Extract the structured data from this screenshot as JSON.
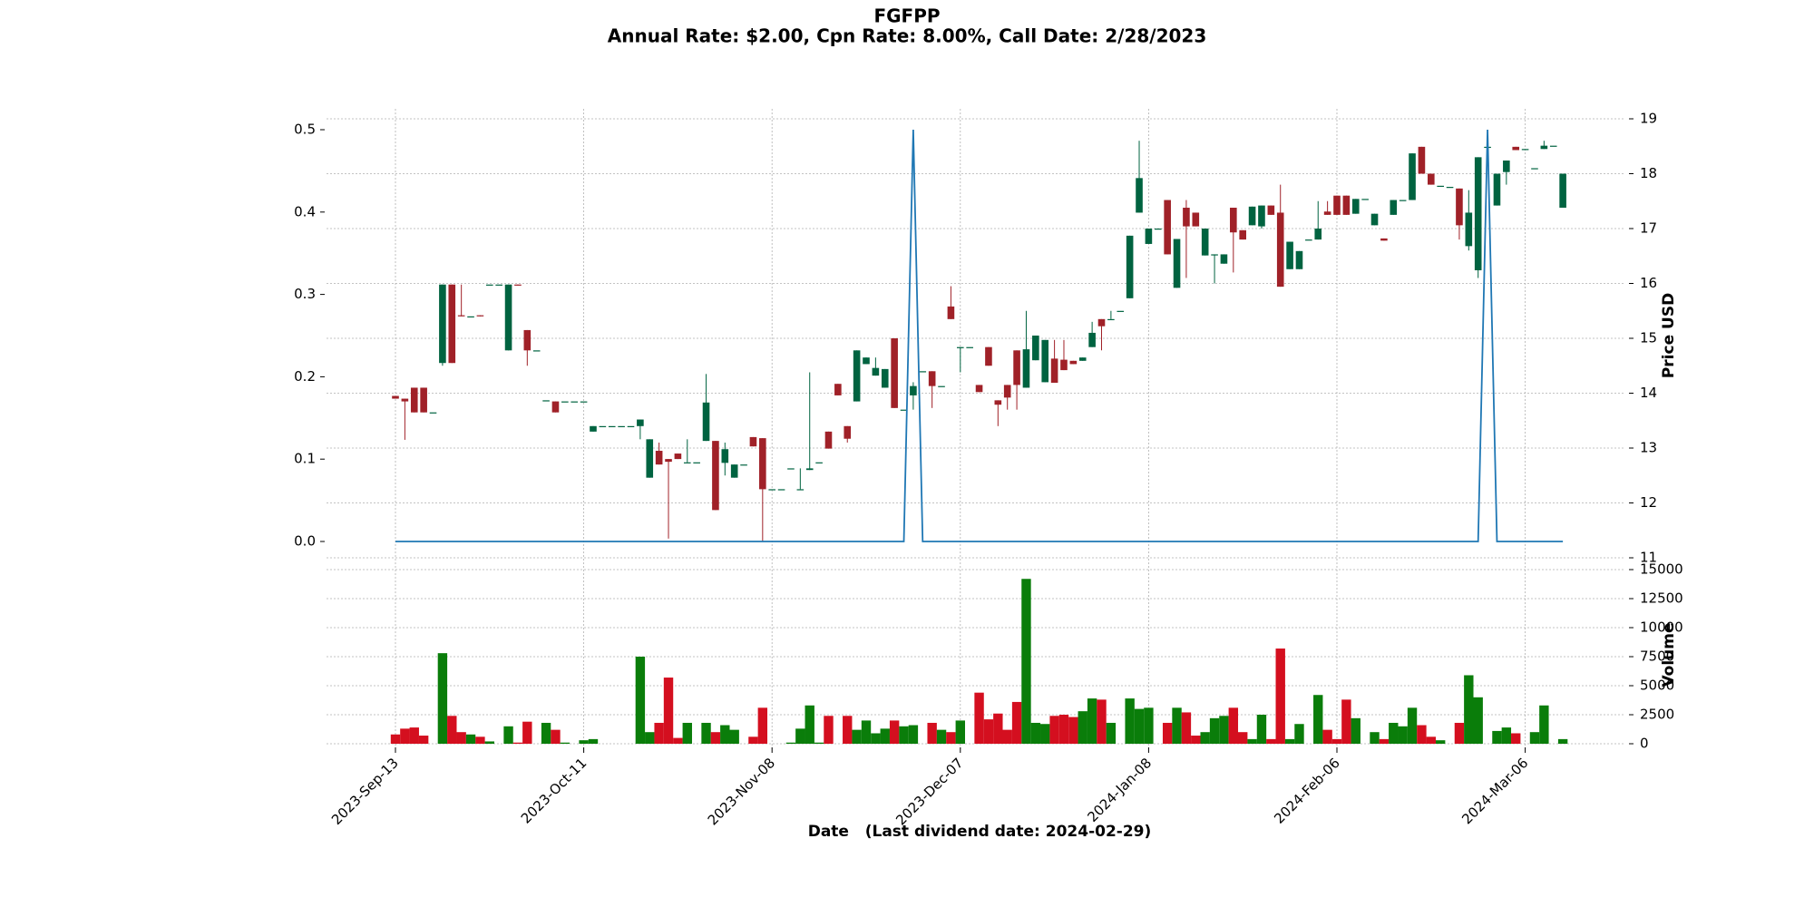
{
  "chart_data": {
    "type": "candlestick",
    "title": "FGFPP",
    "subtitle": "Annual Rate: $2.00, Cpn Rate: 8.00%, Call Date: 2/28/2023",
    "xlabel": "Date   (Last dividend date: 2024-02-29)",
    "ylabel": "Price USD",
    "volume_label": "Volume",
    "categories": [
      "2023-Sep-13",
      null,
      null,
      null,
      null,
      null,
      null,
      null,
      null,
      null,
      null,
      null,
      null,
      null,
      null,
      null,
      null,
      null,
      null,
      null,
      "2023-Oct-11",
      null,
      null,
      null,
      null,
      null,
      null,
      null,
      null,
      null,
      null,
      null,
      null,
      null,
      null,
      null,
      null,
      null,
      null,
      null,
      "2023-Nov-08",
      null,
      null,
      null,
      null,
      null,
      null,
      null,
      null,
      null,
      null,
      null,
      null,
      null,
      null,
      null,
      null,
      null,
      null,
      null,
      "2023-Dec-07",
      null,
      null,
      null,
      null,
      null,
      null,
      null,
      null,
      null,
      null,
      null,
      null,
      null,
      null,
      null,
      null,
      null,
      null,
      null,
      "2024-Jan-08",
      null,
      null,
      null,
      null,
      null,
      null,
      null,
      null,
      null,
      null,
      null,
      null,
      null,
      null,
      null,
      null,
      null,
      null,
      null,
      "2024-Feb-06",
      null,
      null,
      null,
      null,
      null,
      null,
      null,
      null,
      null,
      null,
      null,
      null,
      null,
      null,
      null,
      null,
      null,
      null,
      null,
      "2024-Mar-06",
      null,
      null,
      null,
      null
    ],
    "open": [
      13.95,
      13.9,
      14.1,
      14.1,
      13.65,
      14.55,
      15.98,
      15.42,
      15.4,
      15.42,
      15.98,
      15.98,
      14.78,
      15.98,
      15.15,
      14.78,
      13.87,
      13.85,
      13.85,
      13.85,
      13.85,
      13.3,
      13.4,
      13.4,
      13.4,
      13.4,
      13.4,
      12.46,
      12.95,
      12.8,
      12.9,
      12.74,
      12.74,
      13.13,
      13.13,
      12.73,
      12.46,
      12.7,
      13.2,
      13.18,
      12.25,
      12.25,
      12.63,
      12.25,
      12.6,
      12.74,
      13.3,
      14.17,
      13.4,
      13.85,
      14.53,
      14.32,
      14.1,
      15.0,
      13.7,
      13.96,
      14.4,
      14.4,
      14.13,
      15.58,
      14.82,
      14.84,
      14.15,
      14.84,
      13.87,
      14.15,
      14.78,
      14.1,
      14.6,
      14.2,
      14.63,
      14.61,
      14.59,
      14.59,
      14.84,
      15.35,
      15.35,
      15.5,
      15.73,
      17.29,
      16.72,
      17.0,
      17.52,
      15.92,
      17.38,
      17.29,
      16.51,
      16.53,
      16.36,
      17.38,
      16.97,
      17.06,
      17.04,
      17.42,
      17.29,
      16.26,
      16.26,
      16.8,
      16.8,
      17.31,
      17.6,
      17.6,
      17.27,
      17.54,
      17.06,
      16.82,
      17.25,
      17.52,
      17.52,
      18.49,
      18.0,
      17.78,
      17.76,
      17.73,
      16.68,
      16.24,
      18.49,
      17.42,
      18.03,
      18.49,
      18.45,
      18.1,
      18.45,
      18.51,
      17.38
    ],
    "high": [
      13.95,
      13.9,
      14.1,
      14.1,
      13.65,
      15.98,
      15.98,
      15.98,
      15.4,
      15.42,
      15.98,
      15.98,
      15.98,
      15.98,
      15.15,
      14.78,
      13.87,
      13.85,
      13.85,
      13.85,
      13.85,
      13.4,
      13.4,
      13.4,
      13.4,
      13.4,
      13.52,
      13.16,
      13.1,
      12.8,
      12.9,
      13.16,
      12.74,
      14.35,
      13.13,
      13.1,
      12.7,
      12.7,
      13.2,
      13.18,
      12.25,
      12.25,
      12.63,
      12.63,
      14.38,
      12.74,
      13.3,
      14.17,
      13.4,
      14.78,
      14.65,
      14.65,
      14.44,
      15.0,
      13.7,
      14.2,
      14.4,
      14.4,
      14.13,
      15.95,
      14.84,
      14.84,
      14.15,
      14.84,
      13.87,
      14.15,
      14.78,
      15.5,
      15.05,
      14.97,
      14.97,
      14.97,
      14.59,
      14.65,
      15.3,
      15.35,
      15.5,
      15.5,
      16.87,
      18.6,
      17.0,
      17.0,
      17.52,
      16.81,
      17.52,
      17.29,
      17.0,
      16.53,
      16.53,
      17.38,
      16.97,
      17.4,
      17.42,
      17.42,
      17.8,
      16.76,
      16.59,
      16.8,
      17.5,
      17.5,
      17.6,
      17.6,
      17.54,
      17.54,
      17.27,
      16.82,
      17.52,
      17.52,
      18.37,
      18.49,
      18.0,
      17.78,
      17.76,
      17.73,
      17.7,
      18.3,
      18.49,
      18.0,
      18.24,
      18.49,
      18.45,
      18.1,
      18.6,
      18.51,
      18.0
    ],
    "low": [
      13.9,
      13.15,
      13.65,
      13.65,
      13.65,
      14.5,
      14.55,
      15.4,
      15.4,
      15.4,
      15.98,
      15.98,
      14.78,
      15.96,
      14.5,
      14.78,
      13.87,
      13.65,
      13.85,
      13.85,
      13.85,
      13.3,
      13.4,
      13.4,
      13.4,
      13.4,
      13.16,
      12.46,
      12.7,
      11.35,
      12.8,
      12.74,
      12.74,
      13.13,
      11.87,
      12.5,
      12.46,
      12.7,
      13.03,
      11.3,
      12.25,
      12.25,
      12.63,
      12.25,
      12.6,
      12.74,
      12.99,
      13.96,
      13.1,
      13.85,
      14.53,
      14.32,
      14.1,
      13.73,
      13.7,
      13.7,
      14.4,
      13.73,
      14.13,
      15.35,
      14.38,
      14.84,
      14.02,
      14.5,
      13.4,
      13.7,
      13.7,
      14.1,
      14.6,
      14.2,
      14.19,
      14.42,
      14.53,
      14.59,
      14.84,
      14.78,
      15.35,
      15.5,
      15.73,
      17.29,
      16.72,
      17.0,
      16.53,
      15.92,
      16.1,
      17.04,
      16.51,
      16.0,
      16.36,
      16.2,
      16.8,
      17.06,
      17.0,
      17.25,
      15.94,
      16.26,
      16.26,
      16.8,
      16.8,
      17.25,
      17.25,
      17.25,
      17.27,
      17.54,
      17.06,
      16.78,
      17.25,
      17.52,
      17.52,
      18.0,
      17.8,
      17.78,
      17.76,
      16.8,
      16.6,
      16.1,
      18.49,
      17.42,
      17.8,
      18.43,
      18.45,
      18.1,
      18.45,
      18.51,
      17.38
    ],
    "close": [
      13.9,
      13.85,
      13.65,
      13.65,
      13.65,
      15.98,
      14.55,
      15.4,
      15.4,
      15.4,
      15.98,
      15.98,
      15.98,
      15.96,
      14.78,
      14.78,
      13.87,
      13.65,
      13.85,
      13.85,
      13.85,
      13.4,
      13.4,
      13.4,
      13.4,
      13.4,
      13.52,
      13.16,
      12.7,
      12.75,
      12.8,
      12.74,
      12.74,
      13.83,
      11.87,
      12.98,
      12.7,
      12.7,
      13.03,
      12.25,
      12.25,
      12.25,
      12.63,
      12.25,
      12.63,
      12.74,
      12.99,
      13.96,
      13.17,
      14.78,
      14.65,
      14.46,
      14.44,
      13.73,
      13.7,
      14.13,
      14.4,
      14.13,
      14.13,
      15.35,
      14.84,
      14.84,
      14.02,
      14.5,
      13.79,
      13.92,
      14.15,
      14.8,
      15.05,
      14.97,
      14.19,
      14.42,
      14.53,
      14.65,
      15.1,
      15.22,
      15.35,
      15.5,
      16.87,
      17.92,
      17.0,
      17.0,
      16.53,
      16.81,
      17.04,
      17.04,
      17.0,
      16.53,
      16.53,
      16.93,
      16.8,
      17.4,
      17.42,
      17.25,
      15.94,
      16.76,
      16.59,
      16.8,
      17.0,
      17.25,
      17.25,
      17.25,
      17.54,
      17.54,
      17.27,
      16.78,
      17.52,
      17.52,
      18.37,
      18.0,
      17.8,
      17.78,
      17.76,
      17.06,
      17.29,
      18.3,
      18.49,
      18.0,
      18.24,
      18.43,
      18.45,
      18.1,
      18.51,
      18.51,
      18.0
    ],
    "volume": [
      800,
      1300,
      1400,
      700,
      0,
      7800,
      2400,
      1000,
      800,
      600,
      200,
      0,
      1500,
      100,
      1900,
      0,
      1800,
      1200,
      100,
      0,
      300,
      400,
      0,
      0,
      0,
      0,
      7500,
      1000,
      1800,
      5700,
      500,
      1800,
      0,
      1800,
      1000,
      1600,
      1200,
      0,
      600,
      3100,
      0,
      0,
      100,
      1300,
      3300,
      100,
      2400,
      0,
      2400,
      1200,
      2000,
      900,
      1300,
      2000,
      1500,
      1600,
      0,
      1800,
      1200,
      1000,
      2000,
      0,
      4400,
      2100,
      2600,
      1200,
      3600,
      14200,
      1800,
      1700,
      2400,
      2500,
      2300,
      2800,
      3900,
      3800,
      1800,
      0,
      3900,
      3000,
      3100,
      0,
      1800,
      3100,
      2700,
      700,
      1000,
      2200,
      2400,
      3100,
      1000,
      400,
      2500,
      400,
      8200,
      400,
      1700,
      0,
      4200,
      1200,
      400,
      3800,
      2200,
      0,
      1000,
      400,
      1800,
      1500,
      3100,
      1600,
      600,
      300,
      0,
      1800,
      5900,
      4000,
      0,
      1100,
      1400,
      900,
      0,
      1000,
      3300,
      0,
      400
    ],
    "dividend": {
      "color": "#1f77b4",
      "values": [
        0,
        0,
        0,
        0,
        0,
        0,
        0,
        0,
        0,
        0,
        0,
        0,
        0,
        0,
        0,
        0,
        0,
        0,
        0,
        0,
        0,
        0,
        0,
        0,
        0,
        0,
        0,
        0,
        0,
        0,
        0,
        0,
        0,
        0,
        0,
        0,
        0,
        0,
        0,
        0,
        0,
        0,
        0,
        0,
        0,
        0,
        0,
        0,
        0,
        0,
        0,
        0,
        0,
        0,
        0,
        0.5,
        0,
        0,
        0,
        0,
        0,
        0,
        0,
        0,
        0,
        0,
        0,
        0,
        0,
        0,
        0,
        0,
        0,
        0,
        0,
        0,
        0,
        0,
        0,
        0,
        0,
        0,
        0,
        0,
        0,
        0,
        0,
        0,
        0,
        0,
        0,
        0,
        0,
        0,
        0,
        0,
        0,
        0,
        0,
        0,
        0,
        0,
        0,
        0,
        0,
        0,
        0,
        0,
        0,
        0,
        0,
        0,
        0,
        0,
        0,
        0,
        0.5,
        0,
        0,
        0,
        0,
        0,
        0,
        0,
        0
      ]
    },
    "up_color": "#006340",
    "down_color": "#a02128",
    "volume_up_color": "#0a7d0a",
    "volume_down_color": "#d40f1f",
    "ylim": [
      11,
      19
    ],
    "yticks": [
      11,
      12,
      13,
      14,
      15,
      16,
      17,
      18,
      19
    ],
    "y2lim": [
      0,
      0.5
    ],
    "y2ticks": [
      {
        "value": 0,
        "label": "0.0"
      },
      0.1,
      0.2,
      0.3,
      0.4,
      0.5
    ],
    "volume_lim": [
      0,
      15000
    ],
    "volume_ticks": [
      0,
      2500,
      5000,
      7500,
      10000,
      12500,
      15000
    ],
    "grid": true
  }
}
